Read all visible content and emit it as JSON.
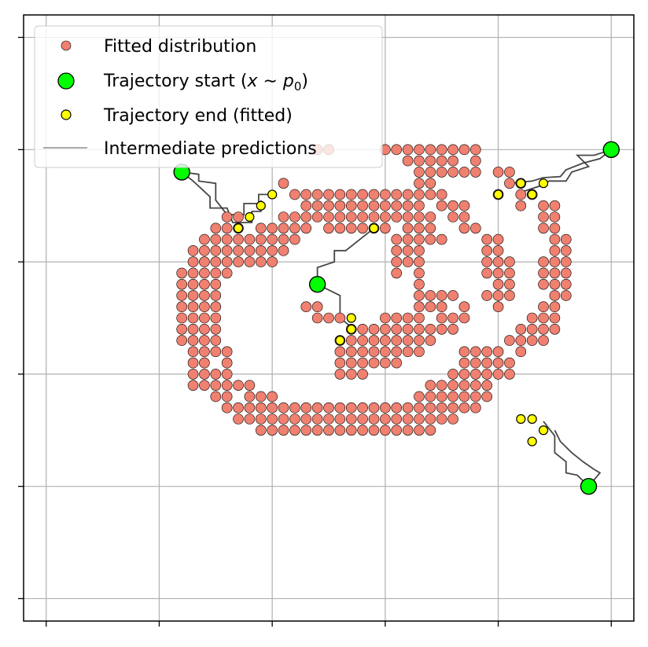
{
  "chart_data": {
    "type": "scatter",
    "title": "",
    "xlabel": "",
    "ylabel": "",
    "xlim": [
      -1.2,
      4.2
    ],
    "ylim": [
      -1.2,
      4.2
    ],
    "grid": true,
    "legend_position": "upper-left",
    "colors": {
      "fitted": "#f08070",
      "start": "#00ff00",
      "end": "#ffff00",
      "path": "#333333",
      "grid": "#b0b0b0"
    },
    "legend": {
      "fitted": "Fitted distribution",
      "start_prefix": "Trajectory start (",
      "start_math": "x ∼ p",
      "start_sub": "0",
      "start_suffix": ")",
      "end": "Trajectory end (fitted)",
      "intermediate": "Intermediate predictions"
    },
    "fitted_rows": [
      {
        "y": 3.0,
        "x": [
          1.4,
          1.5,
          2.0,
          2.1,
          2.2,
          2.3,
          2.4,
          2.5,
          2.6,
          2.7,
          2.8
        ]
      },
      {
        "y": 2.9,
        "x": [
          2.2,
          2.3,
          2.4,
          2.5,
          2.6,
          2.8
        ]
      },
      {
        "y": 2.8,
        "x": [
          2.3,
          2.4,
          2.5,
          2.6,
          2.7,
          2.8,
          3.0,
          3.1
        ]
      },
      {
        "y": 2.7,
        "x": [
          1.1,
          2.3,
          2.4,
          3.1,
          3.2
        ]
      },
      {
        "y": 2.6,
        "x": [
          1.2,
          1.3,
          1.4,
          1.5,
          1.6,
          1.7,
          1.8,
          1.9,
          2.0,
          2.1,
          2.2,
          2.3,
          2.4,
          2.5,
          3.0,
          3.2,
          3.3
        ]
      },
      {
        "y": 2.5,
        "x": [
          1.3,
          1.4,
          1.5,
          1.6,
          1.7,
          1.8,
          1.9,
          2.0,
          2.1,
          2.2,
          2.3,
          2.5,
          2.6,
          2.7,
          3.2,
          3.4,
          3.5
        ]
      },
      {
        "y": 2.4,
        "x": [
          0.6,
          0.7,
          1.1,
          1.2,
          1.3,
          1.4,
          1.5,
          1.6,
          1.7,
          1.8,
          1.9,
          2.0,
          2.1,
          2.2,
          2.3,
          2.4,
          2.6,
          2.7,
          3.4,
          3.5
        ]
      },
      {
        "y": 2.3,
        "x": [
          0.5,
          0.6,
          0.7,
          0.9,
          1.0,
          1.1,
          1.2,
          1.3,
          1.5,
          1.6,
          1.7,
          1.8,
          1.9,
          2.0,
          2.2,
          2.3,
          2.4,
          2.7,
          2.8,
          3.4,
          3.5
        ]
      },
      {
        "y": 2.2,
        "x": [
          0.4,
          0.5,
          0.6,
          0.7,
          0.8,
          0.9,
          1.0,
          1.1,
          1.2,
          2.1,
          2.2,
          2.3,
          2.4,
          2.5,
          2.9,
          3.0,
          3.5,
          3.6
        ]
      },
      {
        "y": 2.1,
        "x": [
          0.3,
          0.4,
          0.5,
          0.6,
          0.7,
          0.8,
          0.9,
          1.0,
          1.1,
          2.1,
          2.2,
          2.3,
          2.9,
          3.0,
          3.5,
          3.6
        ]
      },
      {
        "y": 2.0,
        "x": [
          0.3,
          0.4,
          0.5,
          0.6,
          0.7,
          0.8,
          0.9,
          1.0,
          2.1,
          2.2,
          2.3,
          2.9,
          3.0,
          3.1,
          3.4,
          3.5,
          3.6
        ]
      },
      {
        "y": 1.9,
        "x": [
          0.2,
          0.3,
          0.4,
          0.5,
          0.6,
          2.1,
          2.3,
          2.9,
          3.0,
          3.1,
          3.4,
          3.5,
          3.6
        ]
      },
      {
        "y": 1.8,
        "x": [
          0.2,
          0.3,
          0.4,
          0.5,
          2.3,
          3.0,
          3.1,
          3.4,
          3.5,
          3.6
        ]
      },
      {
        "y": 1.7,
        "x": [
          0.2,
          0.3,
          0.4,
          0.5,
          2.3,
          2.4,
          2.5,
          2.6,
          2.9,
          3.0,
          3.1,
          3.5,
          3.6
        ]
      },
      {
        "y": 1.6,
        "x": [
          0.2,
          0.3,
          0.4,
          0.5,
          1.3,
          1.4,
          2.3,
          2.4,
          2.5,
          2.7,
          3.0,
          3.4,
          3.5
        ]
      },
      {
        "y": 1.5,
        "x": [
          0.2,
          0.3,
          0.4,
          0.5,
          1.4,
          1.5,
          1.6,
          2.0,
          2.1,
          2.2,
          2.3,
          2.5,
          2.6,
          2.7,
          3.3,
          3.4,
          3.5
        ]
      },
      {
        "y": 1.4,
        "x": [
          0.2,
          0.3,
          0.4,
          0.5,
          1.7,
          1.8,
          1.9,
          2.0,
          2.1,
          2.2,
          2.3,
          2.4,
          2.5,
          2.6,
          3.2,
          3.3,
          3.4,
          3.5
        ]
      },
      {
        "y": 1.3,
        "x": [
          0.2,
          0.3,
          0.4,
          0.5,
          1.6,
          1.7,
          1.8,
          1.9,
          2.0,
          2.1,
          2.2,
          2.3,
          2.4,
          3.1,
          3.2,
          3.3,
          3.4
        ]
      },
      {
        "y": 1.2,
        "x": [
          0.3,
          0.4,
          0.5,
          0.6,
          1.6,
          1.7,
          1.8,
          1.9,
          2.0,
          2.1,
          2.2,
          2.3,
          2.7,
          2.8,
          2.9,
          3.0,
          3.2
        ]
      },
      {
        "y": 1.1,
        "x": [
          0.3,
          0.4,
          0.6,
          1.6,
          1.7,
          1.8,
          1.9,
          2.0,
          2.1,
          2.7,
          2.8,
          2.9,
          3.0,
          3.1
        ]
      },
      {
        "y": 1.0,
        "x": [
          0.3,
          0.4,
          0.5,
          0.6,
          1.6,
          1.7,
          1.8,
          2.6,
          2.7,
          2.8,
          2.9,
          3.0,
          3.1
        ]
      },
      {
        "y": 0.9,
        "x": [
          0.3,
          0.4,
          0.5,
          0.6,
          0.7,
          0.8,
          2.4,
          2.5,
          2.6,
          2.7,
          2.8,
          2.9
        ]
      },
      {
        "y": 0.8,
        "x": [
          0.5,
          0.6,
          0.8,
          0.9,
          1.0,
          2.3,
          2.4,
          2.5,
          2.6,
          2.7,
          2.8,
          2.9
        ]
      },
      {
        "y": 0.7,
        "x": [
          0.6,
          0.7,
          0.8,
          0.9,
          1.0,
          1.1,
          1.2,
          1.3,
          1.4,
          1.5,
          1.6,
          1.7,
          1.8,
          1.9,
          2.0,
          2.1,
          2.2,
          2.3,
          2.4,
          2.5,
          2.6,
          2.7,
          2.8
        ]
      },
      {
        "y": 0.6,
        "x": [
          0.7,
          0.8,
          0.9,
          1.0,
          1.1,
          1.2,
          1.3,
          1.4,
          1.5,
          1.6,
          1.7,
          1.8,
          1.9,
          2.0,
          2.1,
          2.2,
          2.3,
          2.4,
          2.5,
          2.6
        ]
      },
      {
        "y": 0.5,
        "x": [
          0.9,
          1.0,
          1.1,
          1.2,
          1.3,
          1.4,
          1.5,
          1.6,
          1.7,
          1.8,
          1.9,
          2.0,
          2.1,
          2.2,
          2.3,
          2.4
        ]
      }
    ],
    "trajectories": [
      {
        "start": [
          0.2,
          2.8
        ],
        "path": [
          [
            0.2,
            2.8
          ],
          [
            0.35,
            2.78
          ],
          [
            0.35,
            2.72
          ],
          [
            0.5,
            2.7
          ],
          [
            0.5,
            2.55
          ],
          [
            0.6,
            2.42
          ],
          [
            0.75,
            2.42
          ],
          [
            0.75,
            2.52
          ],
          [
            0.88,
            2.52
          ],
          [
            0.88,
            2.6
          ],
          [
            1.0,
            2.6
          ]
        ],
        "path2": [
          [
            0.2,
            2.8
          ],
          [
            0.3,
            2.72
          ],
          [
            0.45,
            2.58
          ],
          [
            0.45,
            2.48
          ],
          [
            0.6,
            2.48
          ],
          [
            0.65,
            2.35
          ],
          [
            0.82,
            2.35
          ],
          [
            0.82,
            2.45
          ],
          [
            0.9,
            2.45
          ],
          [
            0.9,
            2.55
          ]
        ],
        "ends": [
          [
            1.0,
            2.6
          ],
          [
            0.9,
            2.5
          ],
          [
            0.8,
            2.4
          ],
          [
            0.7,
            2.3
          ]
        ]
      },
      {
        "start": [
          4.0,
          3.0
        ],
        "path": [
          [
            4.0,
            3.0
          ],
          [
            3.85,
            2.95
          ],
          [
            3.7,
            2.95
          ],
          [
            3.8,
            2.85
          ],
          [
            3.65,
            2.8
          ],
          [
            3.6,
            2.72
          ],
          [
            3.45,
            2.72
          ],
          [
            3.38,
            2.68
          ],
          [
            3.2,
            2.62
          ]
        ],
        "path2": [
          [
            4.0,
            3.0
          ],
          [
            3.9,
            2.92
          ],
          [
            3.75,
            2.88
          ],
          [
            3.6,
            2.82
          ],
          [
            3.55,
            2.76
          ],
          [
            3.4,
            2.75
          ],
          [
            3.3,
            2.72
          ],
          [
            3.1,
            2.7
          ]
        ],
        "ends": [
          [
            3.2,
            2.7
          ],
          [
            3.3,
            2.6
          ],
          [
            3.4,
            2.7
          ],
          [
            3.0,
            2.6
          ]
        ]
      },
      {
        "start": [
          1.4,
          1.8
        ],
        "path": [
          [
            1.4,
            1.8
          ],
          [
            1.5,
            1.75
          ],
          [
            1.6,
            1.7
          ],
          [
            1.6,
            1.5
          ],
          [
            1.7,
            1.42
          ]
        ],
        "path2": [
          [
            1.4,
            1.8
          ],
          [
            1.4,
            1.95
          ],
          [
            1.55,
            2.0
          ],
          [
            1.55,
            2.1
          ],
          [
            1.65,
            2.1
          ],
          [
            1.9,
            2.3
          ]
        ],
        "ends": [
          [
            1.9,
            2.3
          ],
          [
            1.7,
            1.5
          ],
          [
            1.7,
            1.4
          ],
          [
            1.6,
            1.3
          ]
        ]
      },
      {
        "start": [
          3.8,
          0.0
        ],
        "path": [
          [
            3.8,
            0.0
          ],
          [
            3.7,
            0.1
          ],
          [
            3.6,
            0.12
          ],
          [
            3.6,
            0.22
          ],
          [
            3.5,
            0.3
          ],
          [
            3.5,
            0.45
          ],
          [
            3.4,
            0.58
          ]
        ],
        "path2": [
          [
            3.8,
            0.0
          ],
          [
            3.9,
            0.12
          ],
          [
            3.85,
            0.15
          ],
          [
            3.75,
            0.22
          ],
          [
            3.65,
            0.3
          ],
          [
            3.55,
            0.4
          ],
          [
            3.5,
            0.5
          ]
        ],
        "ends": [
          [
            3.2,
            0.6
          ],
          [
            3.3,
            0.6
          ],
          [
            3.4,
            0.5
          ],
          [
            3.3,
            0.4
          ]
        ]
      }
    ]
  }
}
